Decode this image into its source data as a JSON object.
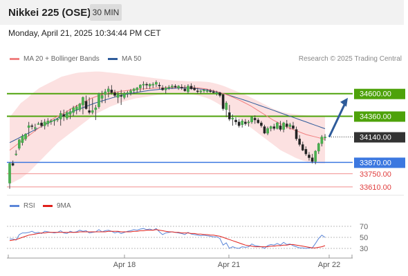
{
  "header": {
    "title": "Nikkei 225 (OSE)",
    "interval": "30 MIN",
    "datetime": "Monday, April 21, 2025 10:34:44 PM CET"
  },
  "legend": {
    "ma20_label": "MA 20 + Bollinger Bands",
    "ma50_label": "MA 50",
    "copyright": "Research © 2025 Trading Central",
    "colors": {
      "ma20": "#f08080",
      "ma50": "#2e5b9a",
      "bands": "#fcdcdc"
    }
  },
  "rsi_legend": {
    "rsi_label": "RSI",
    "ma9_label": "9MA",
    "colors": {
      "rsi": "#5b86d8",
      "ma9": "#e0201b"
    }
  },
  "chart_data": [
    {
      "type": "candlestick",
      "title": "Nikkei 225 (OSE)",
      "interval": "30 MIN",
      "ylim": [
        33580,
        34920
      ],
      "x_ticks": [
        "Apr 18",
        "Apr 21",
        "Apr 22"
      ],
      "candles": [
        [
          33650,
          33870,
          33590,
          33860
        ],
        [
          33860,
          33890,
          33830,
          33840
        ],
        [
          33960,
          34000,
          33940,
          33960
        ],
        [
          34020,
          34120,
          34000,
          34110
        ],
        [
          34080,
          34170,
          34050,
          34150
        ],
        [
          34120,
          34180,
          34100,
          34170
        ],
        [
          34240,
          34300,
          34150,
          34260
        ],
        [
          34260,
          34280,
          34220,
          34250
        ],
        [
          34230,
          34280,
          34200,
          34240
        ],
        [
          34280,
          34300,
          34270,
          34280
        ],
        [
          34290,
          34320,
          34240,
          34260
        ],
        [
          34260,
          34330,
          34220,
          34300
        ],
        [
          34280,
          34340,
          34250,
          34310
        ],
        [
          34300,
          34330,
          34270,
          34310
        ],
        [
          34310,
          34330,
          34260,
          34320
        ],
        [
          34320,
          34340,
          34300,
          34330
        ],
        [
          34330,
          34420,
          34260,
          34390
        ],
        [
          34380,
          34430,
          34310,
          34360
        ],
        [
          34340,
          34420,
          34320,
          34400
        ],
        [
          34380,
          34440,
          34330,
          34410
        ],
        [
          34400,
          34470,
          34360,
          34450
        ],
        [
          34430,
          34480,
          34380,
          34460
        ],
        [
          34430,
          34500,
          34410,
          34490
        ],
        [
          34480,
          34570,
          34380,
          34560
        ],
        [
          34520,
          34580,
          34430,
          34440
        ],
        [
          34420,
          34560,
          34380,
          34400
        ],
        [
          34400,
          34550,
          34380,
          34420
        ],
        [
          34430,
          34480,
          34320,
          34450
        ],
        [
          34460,
          34610,
          34440,
          34600
        ],
        [
          34550,
          34630,
          34500,
          34580
        ],
        [
          34590,
          34650,
          34500,
          34620
        ],
        [
          34620,
          34680,
          34560,
          34650
        ],
        [
          34640,
          34690,
          34590,
          34610
        ],
        [
          34610,
          34640,
          34560,
          34580
        ],
        [
          34560,
          34620,
          34500,
          34590
        ],
        [
          34580,
          34640,
          34480,
          34570
        ],
        [
          34560,
          34620,
          34540,
          34600
        ],
        [
          34600,
          34630,
          34560,
          34610
        ],
        [
          34610,
          34650,
          34580,
          34630
        ],
        [
          34630,
          34660,
          34600,
          34650
        ],
        [
          34640,
          34670,
          34610,
          34660
        ],
        [
          34660,
          34700,
          34620,
          34690
        ],
        [
          34690,
          34730,
          34640,
          34700
        ],
        [
          34700,
          34720,
          34650,
          34690
        ],
        [
          34680,
          34710,
          34650,
          34700
        ],
        [
          34690,
          34720,
          34660,
          34700
        ],
        [
          34700,
          34740,
          34670,
          34720
        ],
        [
          34690,
          34720,
          34650,
          34680
        ],
        [
          34660,
          34690,
          34630,
          34640
        ],
        [
          34640,
          34680,
          34600,
          34660
        ],
        [
          34660,
          34690,
          34640,
          34670
        ],
        [
          34670,
          34700,
          34650,
          34680
        ],
        [
          34680,
          34700,
          34660,
          34670
        ],
        [
          34660,
          34690,
          34640,
          34680
        ],
        [
          34670,
          34700,
          34640,
          34660
        ],
        [
          34650,
          34690,
          34620,
          34630
        ],
        [
          34620,
          34700,
          34600,
          34680
        ],
        [
          34680,
          34710,
          34640,
          34650
        ],
        [
          34660,
          34690,
          34630,
          34640
        ],
        [
          34630,
          34660,
          34600,
          34620
        ],
        [
          34620,
          34640,
          34600,
          34630
        ],
        [
          34630,
          34650,
          34610,
          34640
        ],
        [
          34630,
          34650,
          34610,
          34630
        ],
        [
          34630,
          34650,
          34610,
          34620
        ],
        [
          34620,
          34640,
          34600,
          34610
        ],
        [
          34600,
          34630,
          34580,
          34610
        ],
        [
          34610,
          34620,
          34560,
          34580
        ],
        [
          34590,
          34600,
          34420,
          34440
        ],
        [
          34430,
          34520,
          34350,
          34500
        ],
        [
          34400,
          34480,
          34310,
          34330
        ],
        [
          34330,
          34380,
          34260,
          34340
        ],
        [
          34320,
          34350,
          34270,
          34300
        ],
        [
          34300,
          34330,
          34240,
          34260
        ],
        [
          34270,
          34330,
          34240,
          34310
        ],
        [
          34300,
          34330,
          34260,
          34280
        ],
        [
          34290,
          34320,
          34250,
          34300
        ],
        [
          34300,
          34360,
          34280,
          34350
        ],
        [
          34340,
          34370,
          34280,
          34320
        ],
        [
          34320,
          34340,
          34280,
          34290
        ],
        [
          34290,
          34310,
          34240,
          34260
        ],
        [
          34250,
          34270,
          34170,
          34180
        ],
        [
          34180,
          34250,
          34160,
          34230
        ],
        [
          34230,
          34260,
          34200,
          34250
        ],
        [
          34250,
          34280,
          34210,
          34230
        ],
        [
          34230,
          34300,
          34220,
          34290
        ],
        [
          34260,
          34310,
          34200,
          34220
        ],
        [
          34220,
          34300,
          34190,
          34290
        ],
        [
          34280,
          34320,
          34230,
          34250
        ],
        [
          34250,
          34290,
          34220,
          34270
        ],
        [
          34260,
          34300,
          34220,
          34230
        ],
        [
          34220,
          34250,
          34100,
          34120
        ],
        [
          34120,
          34160,
          34040,
          34060
        ],
        [
          34060,
          34090,
          33990,
          34000
        ],
        [
          34010,
          34040,
          33940,
          33960
        ],
        [
          33950,
          33980,
          33890,
          33920
        ],
        [
          33920,
          33960,
          33860,
          33880
        ],
        [
          33880,
          34000,
          33850,
          33990
        ],
        [
          33990,
          34080,
          33960,
          34070
        ],
        [
          34070,
          34160,
          34040,
          34140
        ],
        [
          34130,
          34170,
          34100,
          34140
        ]
      ],
      "ma20": [
        34000,
        34030,
        34060,
        34090,
        34120,
        34150,
        34180,
        34210,
        34240,
        34265,
        34290,
        34315,
        34340,
        34360,
        34380,
        34400,
        34425,
        34450,
        34470,
        34490,
        34510,
        34530,
        34550,
        34565,
        34580,
        34590,
        34600,
        34610,
        34615,
        34620,
        34625,
        34630,
        34635,
        34640,
        34645,
        34648,
        34650,
        34652,
        34655,
        34658,
        34660,
        34662,
        34664,
        34665,
        34666,
        34667,
        34668,
        34668,
        34667,
        34665,
        34663,
        34660,
        34655,
        34650,
        34640,
        34630,
        34620,
        34608,
        34595,
        34580,
        34565,
        34548,
        34530,
        34510,
        34490,
        34470,
        34445,
        34420,
        34395,
        34370,
        34345,
        34320,
        34300,
        34280,
        34260,
        34240,
        34225,
        34210,
        34195,
        34180,
        34165,
        34155,
        34145,
        34135,
        34125,
        34115
      ],
      "ma50": [
        34080,
        34100,
        34120,
        34140,
        34160,
        34180,
        34200,
        34220,
        34240,
        34260,
        34280,
        34300,
        34320,
        34340,
        34360,
        34380,
        34395,
        34410,
        34425,
        34440,
        34455,
        34470,
        34485,
        34500,
        34512,
        34524,
        34536,
        34548,
        34560,
        34572,
        34582,
        34590,
        34598,
        34605,
        34612,
        34618,
        34624,
        34630,
        34636,
        34640,
        34644,
        34648,
        34652,
        34654,
        34656,
        34658,
        34659,
        34660,
        34658,
        34656,
        34654,
        34650,
        34646,
        34640,
        34632,
        34624,
        34615,
        34605,
        34595,
        34584,
        34572,
        34560,
        34548,
        34535,
        34522,
        34508,
        34494,
        34480,
        34466,
        34452,
        34438,
        34424,
        34410,
        34396,
        34382,
        34368,
        34354,
        34340,
        34326,
        34312,
        34298,
        34284,
        34270,
        34256,
        34242,
        34228
      ],
      "bands_upper": [
        34350,
        34400,
        34450,
        34500,
        34530,
        34560,
        34600,
        34630,
        34660,
        34680,
        34700,
        34720,
        34740,
        34760,
        34780,
        34790,
        34800,
        34810,
        34820,
        34825,
        34828,
        34830,
        34832,
        34835,
        34835,
        34832,
        34828,
        34824,
        34820,
        34815,
        34810,
        34805,
        34800,
        34795,
        34790,
        34785,
        34780,
        34775,
        34770,
        34765,
        34760,
        34755,
        34750,
        34745,
        34740,
        34738,
        34736,
        34734,
        34732,
        34730,
        34730,
        34730,
        34728,
        34725,
        34720,
        34712,
        34702,
        34690,
        34676,
        34660,
        34644,
        34628,
        34612,
        34596,
        34580,
        34560,
        34540,
        34520,
        34500,
        34480,
        34460,
        34440,
        34425,
        34410,
        34400,
        34392,
        34386,
        34380,
        34375,
        34372,
        34370,
        34368,
        34366,
        34364,
        34362,
        34360
      ],
      "bands_lower": [
        33640,
        33660,
        33680,
        33700,
        33730,
        33760,
        33800,
        33840,
        33880,
        33920,
        33960,
        34000,
        34040,
        34080,
        34110,
        34140,
        34170,
        34200,
        34230,
        34260,
        34290,
        34320,
        34350,
        34380,
        34400,
        34420,
        34440,
        34460,
        34475,
        34490,
        34505,
        34520,
        34530,
        34540,
        34550,
        34556,
        34562,
        34568,
        34574,
        34580,
        34586,
        34590,
        34594,
        34596,
        34598,
        34600,
        34600,
        34598,
        34596,
        34592,
        34586,
        34578,
        34568,
        34555,
        34540,
        34520,
        34498,
        34474,
        34448,
        34420,
        34390,
        34360,
        34330,
        34300,
        34270,
        34240,
        34210,
        34180,
        34150,
        34120,
        34090,
        34060,
        34030,
        34000,
        33980,
        33960,
        33940,
        33920,
        33905,
        33890,
        33880,
        33872,
        33866,
        33862,
        33860,
        33860
      ],
      "levels": [
        {
          "value": 34600,
          "label": "34600.00",
          "color": "#4ea20a",
          "style": "resistance",
          "tag": true
        },
        {
          "value": 34360,
          "label": "34360.00",
          "color": "#4ea20a",
          "style": "resistance",
          "tag": true
        },
        {
          "value": 34140,
          "label": "34140.00",
          "color": "#333333",
          "style": "last",
          "tag": true
        },
        {
          "value": 33870,
          "label": "33870.00",
          "color": "#3c78e0",
          "style": "support",
          "tag": true
        },
        {
          "value": 33750,
          "label": "33750.00",
          "color": "#e03c3c",
          "style": "support",
          "tag": false
        },
        {
          "value": 33610,
          "label": "33610.00",
          "color": "#e03c3c",
          "style": "support",
          "tag": false
        }
      ],
      "arrow": {
        "from": 34140,
        "to": 34600,
        "color": "#2e5b9a"
      }
    },
    {
      "type": "line",
      "title": "RSI",
      "ylim": [
        20,
        80
      ],
      "y_ticks": [
        70,
        50,
        30
      ],
      "series": [
        {
          "name": "RSI",
          "values": [
            47,
            47,
            45,
            55,
            58,
            58,
            59,
            61,
            58,
            59,
            57,
            61,
            60,
            59,
            58,
            59,
            62,
            58,
            57,
            61,
            59,
            60,
            63,
            61,
            62,
            58,
            59,
            60,
            64,
            60,
            62,
            63,
            61,
            58,
            60,
            57,
            59,
            61,
            62,
            64,
            63,
            65,
            66,
            64,
            65,
            63,
            66,
            60,
            55,
            58,
            59,
            60,
            59,
            58,
            57,
            55,
            59,
            56,
            55,
            54,
            53,
            54,
            53,
            52,
            51,
            51,
            48,
            36,
            40,
            30,
            33,
            31,
            30,
            33,
            32,
            33,
            38,
            35,
            34,
            33,
            30,
            35,
            37,
            36,
            39,
            36,
            41,
            37,
            38,
            35,
            33,
            31,
            31,
            30,
            31,
            31,
            39,
            48,
            54,
            50
          ]
        },
        {
          "name": "9MA",
          "values": [
            44,
            45,
            46,
            48,
            50,
            52,
            54,
            55,
            56,
            57,
            58,
            58,
            59,
            59,
            59,
            59,
            59,
            59,
            59,
            59,
            59,
            59,
            60,
            60,
            60,
            60,
            60,
            60,
            60,
            60,
            60,
            61,
            61,
            61,
            61,
            60,
            60,
            60,
            60,
            61,
            61,
            62,
            62,
            63,
            63,
            63,
            64,
            63,
            62,
            61,
            60,
            60,
            59,
            59,
            58,
            58,
            58,
            57,
            57,
            56,
            56,
            55,
            55,
            54,
            54,
            53,
            52,
            50,
            48,
            46,
            44,
            42,
            40,
            38,
            36,
            35,
            34,
            33,
            33,
            33,
            33,
            33,
            34,
            34,
            35,
            35,
            36,
            36,
            37,
            37,
            36,
            35,
            34,
            33,
            32,
            31,
            31,
            32,
            33,
            35
          ]
        }
      ]
    }
  ]
}
